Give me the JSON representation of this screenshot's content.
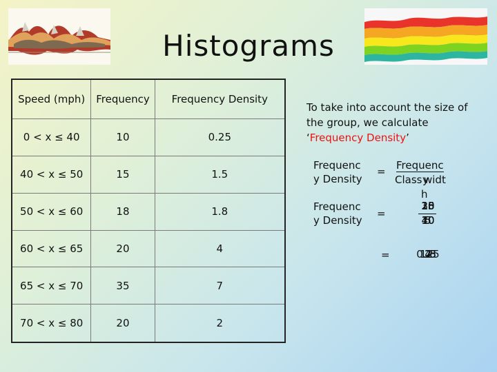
{
  "slide": {
    "title": "Histograms"
  },
  "decor": {
    "left_image": "stream-chart-thumbnail",
    "right_image": "stream-chart-thumbnail"
  },
  "table": {
    "headers": [
      "Speed (mph)",
      "Frequency",
      "Frequency Density"
    ],
    "rows": [
      [
        "0 < x ≤ 40",
        "10",
        "0.25"
      ],
      [
        "40 < x ≤ 50",
        "15",
        "1.5"
      ],
      [
        "50 < x ≤ 60",
        "18",
        "1.8"
      ],
      [
        "60 < x ≤ 65",
        "20",
        "4"
      ],
      [
        "65 < x ≤ 70",
        "35",
        "7"
      ],
      [
        "70 < x ≤ 80",
        "20",
        "2"
      ]
    ]
  },
  "explanation": {
    "text_before": "To take into account the size of the group, we calculate ‘",
    "highlight": "Frequency Density",
    "text_after": "’",
    "formula": {
      "lhs_line1": "Frequenc",
      "lhs_line2": "y Density",
      "equals": "=",
      "numerator_line1": "Frequenc",
      "numerator_line2": "y",
      "denominator_line1": "Class",
      "denominator_line2": "widt",
      "denominator_line3": "h"
    },
    "substitution": {
      "lhs_line1": "Frequenc",
      "lhs_line2": "y Density",
      "equals": "=",
      "numerators": [
        "10",
        "15",
        "18",
        "20",
        "35",
        "20"
      ],
      "denominators": [
        "40",
        "10",
        "10",
        "5",
        "5",
        "10"
      ]
    },
    "result": {
      "equals": "=",
      "values": [
        "0.25",
        "1.5",
        "1.8",
        "4",
        "7",
        "2"
      ]
    }
  }
}
